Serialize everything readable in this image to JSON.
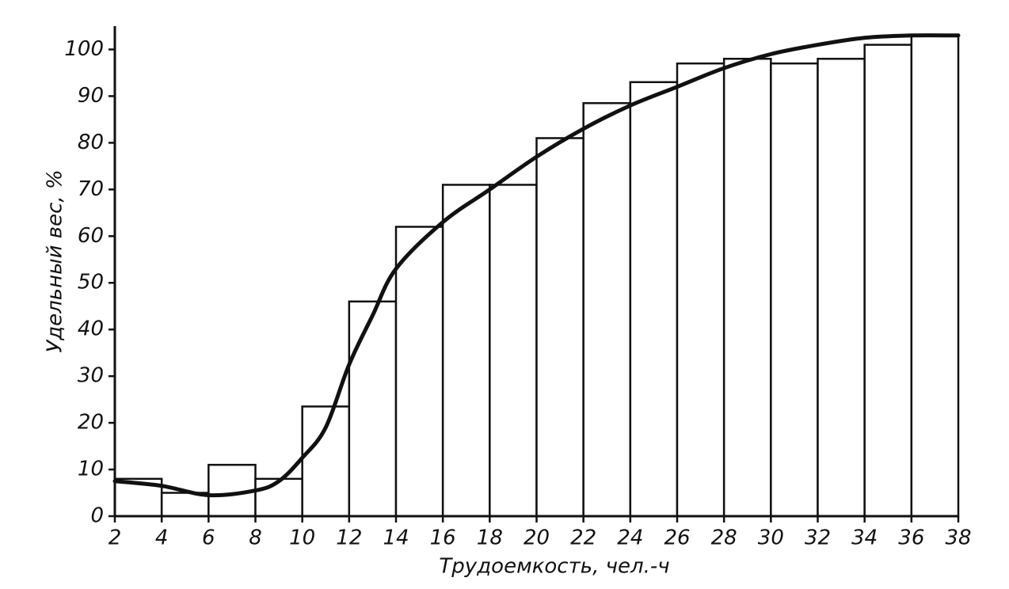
{
  "chart_data": {
    "type": "histogram",
    "x_label": "Трудоемкость, чел.-ч",
    "y_label": "Удельный вес, %",
    "bins": [
      2,
      4,
      6,
      8,
      10,
      12,
      14,
      16,
      18,
      20,
      22,
      24,
      26,
      28,
      30,
      32,
      34,
      36,
      38
    ],
    "values": [
      8,
      5,
      11,
      8,
      23.5,
      46,
      62,
      71,
      71,
      81,
      88.5,
      93,
      97,
      98,
      97,
      98,
      101,
      103
    ],
    "color": "#ffffff",
    "curve": {
      "x": [
        2,
        4,
        6,
        8,
        9,
        10,
        11,
        12,
        13,
        14,
        16,
        18,
        20,
        22,
        24,
        26,
        28,
        30,
        32,
        34,
        36,
        38
      ],
      "values": [
        7.5,
        6.5,
        4.5,
        5.5,
        7.5,
        12.5,
        19,
        32.5,
        43,
        53,
        63,
        70,
        77,
        83,
        88,
        92,
        96,
        99,
        101,
        102.5,
        103,
        103
      ],
      "color": "#111111"
    },
    "xlim": [
      2,
      38
    ],
    "ylim": [
      0,
      105
    ],
    "xticks": [
      2,
      4,
      6,
      8,
      10,
      12,
      14,
      16,
      18,
      20,
      22,
      24,
      26,
      28,
      30,
      32,
      34,
      36,
      38
    ],
    "yticks": [
      0,
      10,
      20,
      30,
      40,
      50,
      60,
      70,
      80,
      90,
      100
    ]
  }
}
